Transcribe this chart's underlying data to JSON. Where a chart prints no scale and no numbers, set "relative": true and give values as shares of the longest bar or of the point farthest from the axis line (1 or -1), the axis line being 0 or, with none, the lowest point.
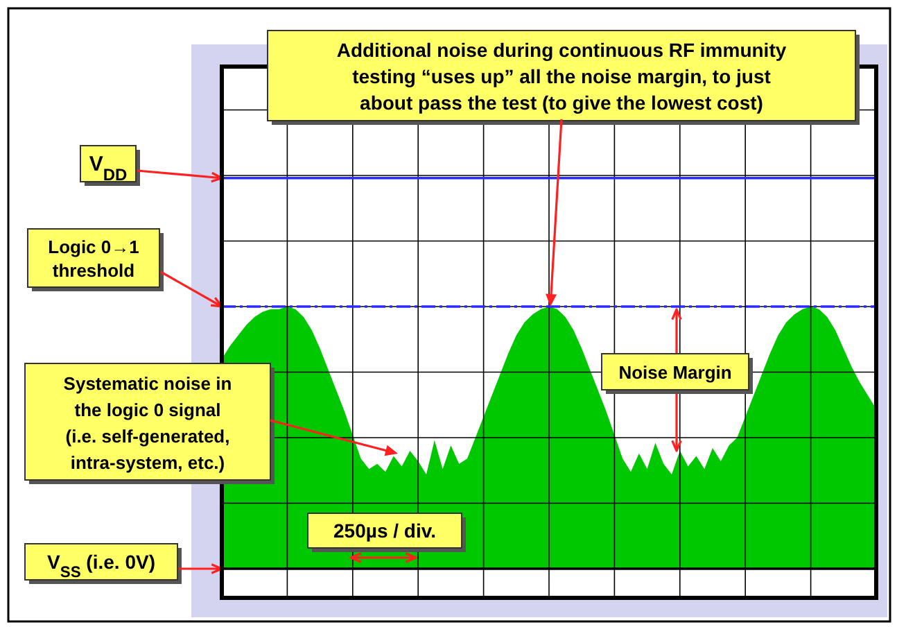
{
  "chart_data": {
    "type": "area",
    "relative": true,
    "color": "#00c800",
    "grid": true,
    "categories": [
      null,
      null,
      null,
      null,
      null,
      null,
      null,
      null,
      null,
      null,
      null,
      null,
      null,
      null,
      null,
      null,
      null,
      null,
      null,
      null,
      null,
      null,
      null,
      null,
      null,
      null,
      null,
      null,
      null,
      null,
      null,
      null,
      null,
      null,
      null,
      null,
      null,
      null,
      null,
      null,
      null,
      null,
      null,
      null,
      null,
      null,
      null,
      null,
      null,
      null,
      null,
      null,
      null,
      null,
      null,
      null,
      null,
      null,
      null,
      null,
      null,
      null,
      null,
      null,
      null,
      null,
      null,
      null,
      null,
      null,
      null,
      null,
      null,
      null,
      null,
      null,
      null,
      null,
      null,
      null,
      null
    ],
    "values": [
      0.8,
      0.85,
      0.89,
      0.93,
      0.96,
      0.98,
      0.99,
      0.99,
      1,
      0.99,
      0.96,
      0.91,
      0.84,
      0.76,
      0.68,
      0.6,
      0.51,
      0.42,
      0.38,
      0.4,
      0.37,
      0.43,
      0.39,
      0.45,
      0.41,
      0.36,
      0.49,
      0.38,
      0.47,
      0.4,
      0.42,
      0.5,
      0.58,
      0.66,
      0.74,
      0.82,
      0.89,
      0.94,
      0.97,
      0.99,
      1,
      0.99,
      0.96,
      0.91,
      0.84,
      0.76,
      0.68,
      0.6,
      0.51,
      0.42,
      0.37,
      0.44,
      0.38,
      0.48,
      0.4,
      0.36,
      0.45,
      0.39,
      0.43,
      0.38,
      0.46,
      0.41,
      0.47,
      0.5,
      0.58,
      0.66,
      0.74,
      0.82,
      0.89,
      0.94,
      0.97,
      0.99,
      1,
      0.99,
      0.96,
      0.91,
      0.84,
      0.77,
      0.71,
      0.66,
      0.61
    ],
    "ref_lines": [
      {
        "axis": "y",
        "value": 1.49,
        "label": "V$_{DD}$",
        "color": "#2a2aff",
        "line_style": "solid"
      },
      {
        "axis": "y",
        "value": 1,
        "label": "Logic 0→1\nthreshold",
        "color": "#2a2aff",
        "line_style": "dashed"
      },
      {
        "axis": "y",
        "value": 0,
        "label": "V$_{SS}$ (i.e. 0V)",
        "color": "#000000",
        "line_style": "solid"
      }
    ],
    "annotations": [
      "Additional noise during continuous RF immunity\ntesting “uses up” all the noise margin, to just\nabout pass the test   (to give the lowest cost)",
      "Systematic noise in\nthe logic 0 signal\n(i.e. self-generated,\nintra-system, etc.)",
      "Noise Margin",
      "250µs / div."
    ]
  }
}
